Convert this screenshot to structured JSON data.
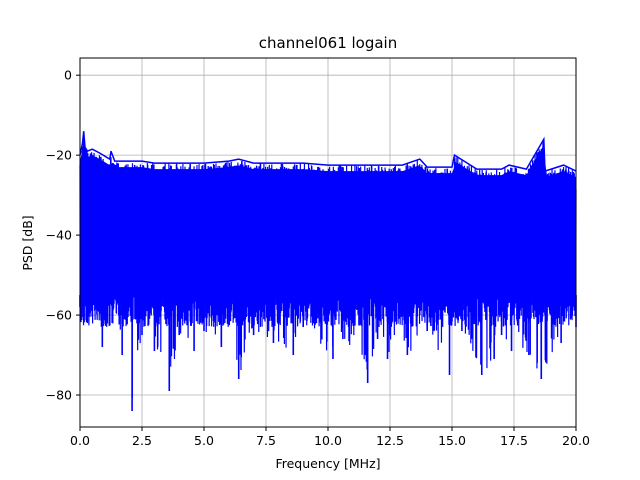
{
  "chart_data": {
    "type": "line",
    "title": "channel061 logain",
    "xlabel": "Frequency [MHz]",
    "ylabel": "PSD [dB]",
    "xlim": [
      0,
      20
    ],
    "ylim": [
      -88,
      4.3
    ],
    "xticks": [
      0,
      2.5,
      5,
      7.5,
      10,
      12.5,
      15,
      17.5,
      20
    ],
    "xtick_labels": [
      "0.0",
      "2.5",
      "5.0",
      "7.5",
      "10.0",
      "12.5",
      "15.0",
      "17.5",
      "20.0"
    ],
    "yticks": [
      0,
      -20,
      -40,
      -60,
      -80
    ],
    "ytick_labels": [
      "0",
      "−20",
      "−40",
      "−60",
      "−80"
    ],
    "grid": true,
    "color": "#0000ff",
    "series": [
      {
        "upper_envelope": {
          "x": [
            0,
            0.1,
            0.15,
            0.2,
            0.3,
            0.5,
            0.8,
            1.2,
            1.25,
            1.4,
            2.0,
            2.5,
            3.0,
            4.0,
            5.0,
            6.0,
            6.4,
            7.0,
            8.0,
            9.0,
            10.0,
            11.0,
            12.0,
            13.0,
            13.7,
            14.0,
            15.0,
            15.1,
            16.0,
            17.0,
            17.3,
            18.0,
            18.7,
            18.75,
            19.0,
            19.5,
            20.0
          ],
          "y": [
            -20,
            -17,
            -14,
            -18,
            -19,
            -18.5,
            -19.5,
            -21,
            -19,
            -21.5,
            -21.5,
            -21.5,
            -22,
            -22,
            -22,
            -21.5,
            -21,
            -22,
            -22,
            -22,
            -22.5,
            -22.5,
            -22.5,
            -22.5,
            -21,
            -23,
            -23,
            -20,
            -23.5,
            -23.5,
            -22.5,
            -23.5,
            -16,
            -24,
            -23.5,
            -22.5,
            -24
          ]
        },
        "lower_envelope": {
          "x": [
            0,
            0.3,
            0.5,
            0.9,
            1.3,
            1.7,
            2.1,
            2.5,
            3.0,
            3.6,
            4.0,
            4.6,
            5.0,
            5.7,
            6.4,
            7.0,
            7.8,
            8.6,
            9.0,
            10.2,
            10.6,
            11.6,
            12.0,
            12.4,
            13.2,
            14.0,
            14.9,
            15.4,
            16.2,
            16.7,
            17.0,
            17.4,
            18.1,
            18.6,
            19.4,
            20.0
          ],
          "y": [
            -58,
            -62,
            -59,
            -68,
            -62,
            -70,
            -84,
            -65,
            -69,
            -79,
            -65,
            -69,
            -64,
            -68,
            -76,
            -65,
            -67,
            -70,
            -63,
            -71,
            -66,
            -77,
            -66,
            -71,
            -70,
            -64,
            -75,
            -64,
            -75,
            -71,
            -65,
            -69,
            -70,
            -76,
            -67,
            -63
          ]
        }
      }
    ]
  }
}
